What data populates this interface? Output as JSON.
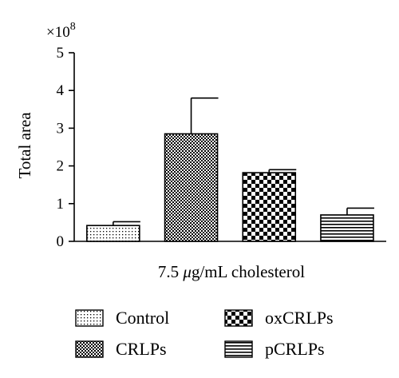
{
  "chart_data": {
    "type": "bar",
    "scale_note": "×10",
    "scale_exponent": "8",
    "xlabel_prefix": "7.5 ",
    "xlabel_mu": "μ",
    "xlabel_suffix": "g/mL cholesterol",
    "ylabel": "Total area",
    "ylim": [
      0,
      5
    ],
    "yticks": [
      0,
      1,
      2,
      3,
      4,
      5
    ],
    "categories": [
      "Control",
      "CRLPs",
      "oxCRLPs",
      "pCRLPs"
    ],
    "values": [
      0.42,
      2.85,
      1.82,
      0.7
    ],
    "errors": [
      0.1,
      0.95,
      0.08,
      0.18
    ],
    "patterns": [
      "dots",
      "checker-fine",
      "checker-coarse",
      "hlines"
    ],
    "legend": [
      {
        "label": "Control",
        "pattern": "dots"
      },
      {
        "label": "CRLPs",
        "pattern": "checker-fine"
      },
      {
        "label": "oxCRLPs",
        "pattern": "checker-coarse"
      },
      {
        "label": "pCRLPs",
        "pattern": "hlines"
      }
    ],
    "legend_placement": "bottom",
    "grid": false
  }
}
